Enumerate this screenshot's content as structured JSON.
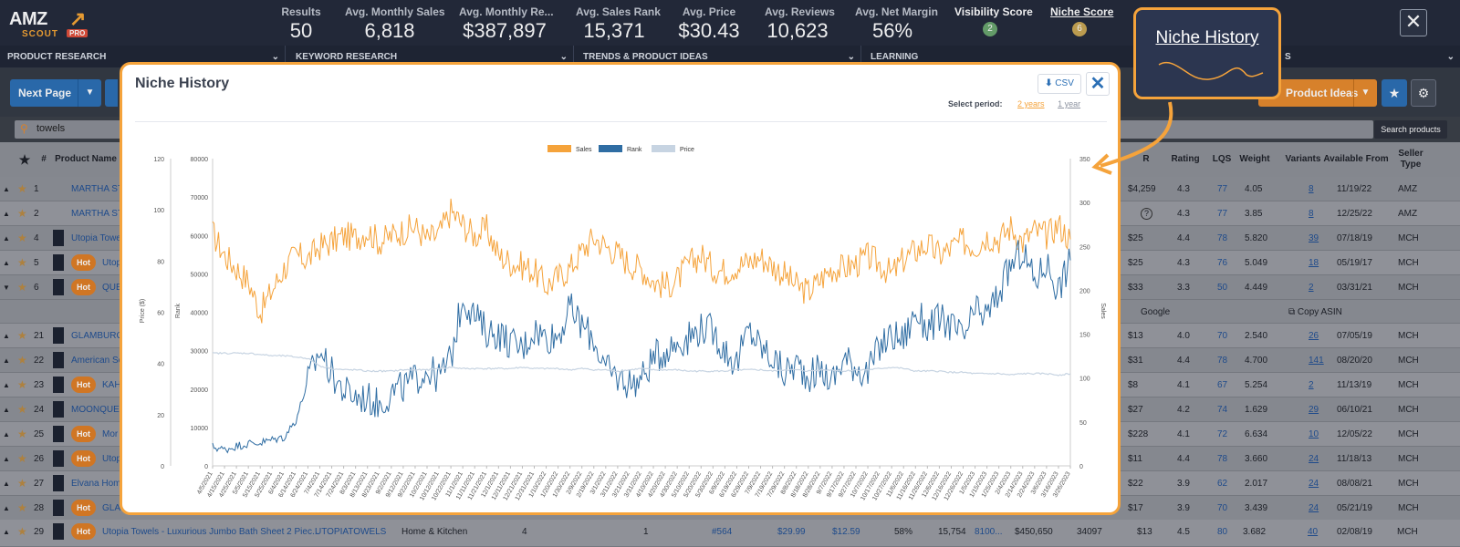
{
  "logo": {
    "amz": "AMZ",
    "scout": "SCOUT",
    "pro": "PRO"
  },
  "stats": [
    {
      "label": "Results",
      "value": "50"
    },
    {
      "label": "Avg. Monthly Sales",
      "value": "6,818"
    },
    {
      "label": "Avg. Monthly Re...",
      "value": "$387,897"
    },
    {
      "label": "Avg. Sales Rank",
      "value": "15,371"
    },
    {
      "label": "Avg. Price",
      "value": "$30.43"
    },
    {
      "label": "Avg. Reviews",
      "value": "10,623"
    },
    {
      "label": "Avg. Net Margin",
      "value": "56%"
    }
  ],
  "scores": {
    "visibility_label": "Visibility Score",
    "visibility_value": "2",
    "niche_label": "Niche Score",
    "niche_value": "6"
  },
  "nav": [
    "PRODUCT RESEARCH",
    "KEYWORD RESEARCH",
    "TRENDS & PRODUCT IDEAS",
    "LEARNING",
    "S"
  ],
  "toolbar": {
    "next_page": "Next Page",
    "product_ideas": "Product Ideas",
    "search_btn": "Search products"
  },
  "search": {
    "value": "towels"
  },
  "table": {
    "headers": [
      "#",
      "Product Name",
      "R",
      "Rating",
      "LQS",
      "Weight",
      "Variants",
      "Available From",
      "Seller Type"
    ],
    "rows": [
      {
        "n": "1",
        "name": "MARTHA ST",
        "hot": false,
        "rev": "$4,259",
        "rating": "4.3",
        "lqs": "77",
        "weight": "4.05",
        "variants": "8",
        "from": "11/19/22",
        "seller": "AMZ"
      },
      {
        "n": "2",
        "name": "MARTHA ST",
        "hot": false,
        "rev": "",
        "rating": "4.3",
        "lqs": "77",
        "weight": "3.85",
        "variants": "8",
        "from": "12/25/22",
        "seller": "AMZ"
      },
      {
        "n": "4",
        "name": "Utopia Towe",
        "hot": false,
        "rev": "$25",
        "rating": "4.4",
        "lqs": "78",
        "weight": "5.820",
        "variants": "39",
        "from": "07/18/19",
        "seller": "MCH"
      },
      {
        "n": "5",
        "name": "Utop",
        "hot": true,
        "rev": "$25",
        "rating": "4.3",
        "lqs": "76",
        "weight": "5.049",
        "variants": "18",
        "from": "05/19/17",
        "seller": "MCH"
      },
      {
        "n": "6",
        "name": "QUE",
        "hot": true,
        "rev": "$33",
        "rating": "3.3",
        "lqs": "50",
        "weight": "4.449",
        "variants": "2",
        "from": "03/31/21",
        "seller": "MCH"
      },
      {
        "n": "21",
        "name": "GLAMBURG",
        "hot": false,
        "rev": "$13",
        "rating": "4.0",
        "lqs": "70",
        "weight": "2.540",
        "variants": "26",
        "from": "07/05/19",
        "seller": "MCH"
      },
      {
        "n": "22",
        "name": "American So",
        "hot": false,
        "rev": "$31",
        "rating": "4.4",
        "lqs": "78",
        "weight": "4.700",
        "variants": "141",
        "from": "08/20/20",
        "seller": "MCH"
      },
      {
        "n": "23",
        "name": "KAH",
        "hot": true,
        "rev": "$8",
        "rating": "4.1",
        "lqs": "67",
        "weight": "5.254",
        "variants": "2",
        "from": "11/13/19",
        "seller": "MCH"
      },
      {
        "n": "24",
        "name": "MOONQUE",
        "hot": false,
        "rev": "$27",
        "rating": "4.2",
        "lqs": "74",
        "weight": "1.629",
        "variants": "29",
        "from": "06/10/21",
        "seller": "MCH"
      },
      {
        "n": "25",
        "name": "Mor",
        "hot": true,
        "rev": "$228",
        "rating": "4.1",
        "lqs": "72",
        "weight": "6.634",
        "variants": "10",
        "from": "12/05/22",
        "seller": "MCH"
      },
      {
        "n": "26",
        "name": "Utop",
        "hot": true,
        "rev": "$11",
        "rating": "4.4",
        "lqs": "78",
        "weight": "3.660",
        "variants": "24",
        "from": "11/18/13",
        "seller": "MCH"
      },
      {
        "n": "27",
        "name": "Elvana Hom",
        "hot": false,
        "rev": "$22",
        "rating": "3.9",
        "lqs": "62",
        "weight": "2.017",
        "variants": "24",
        "from": "08/08/21",
        "seller": "MCH"
      },
      {
        "n": "28",
        "name": "GLA",
        "hot": true,
        "rev": "$17",
        "rating": "3.9",
        "lqs": "70",
        "weight": "3.439",
        "variants": "24",
        "from": "05/21/19",
        "seller": "MCH"
      }
    ],
    "expanded": {
      "google": "Google",
      "copy_asin": "Copy ASIN"
    },
    "bottom_row": {
      "n": "29",
      "name": "Utopia Towels - Luxurious Jumbo Bath Sheet 2 Piec...",
      "brand": "UTOPIATOWELS",
      "category": "Home & Kitchen",
      "lqs_box": "4",
      "sales": "1",
      "rank": "#564",
      "price": "$29.99",
      "fee": "$12.59",
      "margin": "58%",
      "reviews": "15,754",
      "r2": "8100...",
      "revenue": "$450,650",
      "units": "34097",
      "rev": "$13",
      "rating": "4.5",
      "lqs": "80",
      "weight": "3.682",
      "variants": "40",
      "from": "02/08/19",
      "seller": "MCH"
    }
  },
  "modal": {
    "title": "Niche History",
    "csv": "CSV",
    "select_period": "Select period:",
    "period_2y": "2 years",
    "period_1y": "1 year"
  },
  "callout": {
    "title": "Niche History"
  },
  "chart_data": {
    "type": "line",
    "legend": [
      "Sales",
      "Rank",
      "Price"
    ],
    "legend_position": "top-center",
    "y_left_price": {
      "label": "Price ($)",
      "ticks": [
        0,
        20,
        40,
        60,
        80,
        100,
        120
      ]
    },
    "y_left_rank": {
      "label": "Rank",
      "ticks": [
        0,
        10000,
        20000,
        30000,
        40000,
        50000,
        60000,
        70000,
        80000
      ]
    },
    "y_right_sales": {
      "label": "Sales",
      "ticks": [
        0,
        50,
        100,
        150,
        200,
        250,
        300,
        350
      ]
    },
    "x_labels": [
      "4/5/2021",
      "4/15/2021",
      "4/25/2021",
      "5/5/2021",
      "5/15/2021",
      "5/25/2021",
      "6/4/2021",
      "6/14/2021",
      "6/24/2021",
      "7/4/2021",
      "7/14/2021",
      "7/24/2021",
      "8/3/2021",
      "8/13/2021",
      "8/23/2021",
      "9/2/2021",
      "9/12/2021",
      "9/22/2021",
      "10/2/2021",
      "10/12/2021",
      "10/22/2021",
      "11/1/2021",
      "11/11/2021",
      "11/21/2021",
      "12/1/2021",
      "12/11/2021",
      "12/21/2021",
      "12/31/2021",
      "1/10/2022",
      "1/20/2022",
      "1/30/2022",
      "2/9/2022",
      "2/19/2022",
      "3/1/2022",
      "3/11/2022",
      "3/21/2022",
      "3/31/2022",
      "4/10/2022",
      "4/20/2022",
      "4/30/2022",
      "5/10/2022",
      "5/20/2022",
      "5/30/2022",
      "6/9/2022",
      "6/19/2022",
      "6/29/2022",
      "7/9/2022",
      "7/19/2022",
      "7/29/2022",
      "8/8/2022",
      "8/18/2022",
      "8/28/2022",
      "9/7/2022",
      "9/17/2022",
      "9/27/2022",
      "10/7/2022",
      "10/17/2022",
      "10/27/2022",
      "11/6/2022",
      "11/16/2022",
      "11/26/2022",
      "12/6/2022",
      "12/16/2022",
      "12/26/2022",
      "1/5/2023",
      "1/15/2023",
      "1/25/2023",
      "2/4/2023",
      "2/14/2023",
      "2/24/2023",
      "3/6/2023",
      "3/16/2023",
      "3/26/2023"
    ],
    "series": [
      {
        "name": "Sales",
        "axis": "sales",
        "color": "#f5a33b",
        "values": [
          265,
          240,
          225,
          210,
          175,
          200,
          225,
          240,
          235,
          250,
          255,
          262,
          260,
          268,
          255,
          262,
          268,
          272,
          258,
          264,
          290,
          275,
          262,
          270,
          240,
          232,
          228,
          222,
          205,
          215,
          225,
          245,
          260,
          250,
          242,
          230,
          225,
          210,
          205,
          212,
          230,
          240,
          225,
          222,
          228,
          232,
          238,
          228,
          218,
          205,
          198,
          212,
          225,
          225,
          230,
          238,
          230,
          218,
          235,
          245,
          252,
          240,
          248,
          256,
          250,
          262,
          258,
          272,
          255,
          268,
          262,
          275,
          258
        ]
      },
      {
        "name": "Rank",
        "axis": "rank",
        "color": "#2f6da3",
        "values": [
          5000,
          4200,
          5200,
          5800,
          6000,
          6800,
          7500,
          12000,
          22000,
          30000,
          24000,
          19500,
          18000,
          17500,
          16000,
          19000,
          20500,
          22500,
          25000,
          23000,
          28000,
          44000,
          39000,
          35000,
          34500,
          32000,
          30500,
          35500,
          33500,
          34000,
          41000,
          36500,
          33000,
          25000,
          23000,
          21500,
          22500,
          28000,
          30000,
          32000,
          33500,
          36000,
          35000,
          30000,
          26500,
          35500,
          31000,
          28000,
          24000,
          26500,
          23500,
          25000,
          22000,
          28000,
          26000,
          24000,
          31000,
          34000,
          33000,
          40000,
          36000,
          38000,
          36500,
          33000,
          40000,
          39000,
          45000,
          52000,
          56000,
          48000,
          53000,
          46000,
          53500
        ]
      },
      {
        "name": "Price",
        "axis": "price",
        "color": "#c7d4e2",
        "values": [
          44,
          44,
          44,
          44,
          43.5,
          43,
          43,
          42.5,
          42,
          39,
          38,
          37.5,
          37.5,
          37,
          37,
          37,
          37.5,
          37.5,
          37.5,
          38,
          38.5,
          38,
          38,
          38,
          38,
          38,
          38.5,
          38,
          38,
          38,
          37.5,
          38,
          37.5,
          37.5,
          37,
          37.5,
          38,
          37.5,
          37.5,
          37.5,
          37,
          37,
          37,
          37,
          37.5,
          37.5,
          37.5,
          37,
          37.5,
          37.5,
          37,
          37.5,
          37.5,
          37,
          37.5,
          37.5,
          38,
          38.5,
          38,
          37,
          37,
          37,
          36.5,
          36.5,
          36,
          36,
          36,
          35.5,
          36,
          36,
          36,
          35.5,
          36
        ]
      }
    ]
  }
}
